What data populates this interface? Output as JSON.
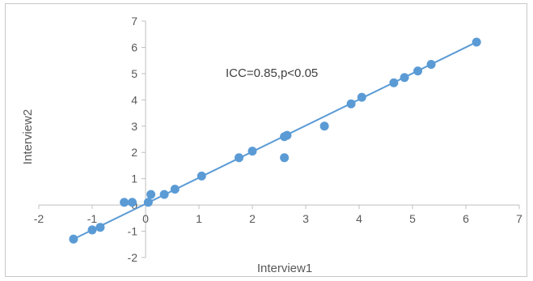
{
  "chart_data": {
    "type": "scatter",
    "xlabel": "Interview1",
    "ylabel": "Interview2",
    "annotation": "ICC=0.85,p<0.05",
    "xlim": [
      -2,
      7
    ],
    "ylim": [
      -2,
      7
    ],
    "xticks": [
      -2,
      -1,
      0,
      1,
      2,
      3,
      4,
      5,
      6,
      7
    ],
    "yticks": [
      -2,
      -1,
      0,
      1,
      2,
      3,
      4,
      5,
      6,
      7
    ],
    "grid": false,
    "color": "#5b9bd5",
    "trendline": {
      "type": "linear",
      "x": [
        -1.35,
        6.2
      ],
      "y": [
        -1.3,
        6.2
      ]
    },
    "points": [
      {
        "x": -1.35,
        "y": -1.3
      },
      {
        "x": -1.0,
        "y": -0.95
      },
      {
        "x": -0.85,
        "y": -0.85
      },
      {
        "x": -0.4,
        "y": 0.1
      },
      {
        "x": -0.25,
        "y": 0.1
      },
      {
        "x": 0.05,
        "y": 0.1
      },
      {
        "x": 0.1,
        "y": 0.4
      },
      {
        "x": 0.35,
        "y": 0.4
      },
      {
        "x": 0.55,
        "y": 0.6
      },
      {
        "x": 1.05,
        "y": 1.1
      },
      {
        "x": 1.75,
        "y": 1.8
      },
      {
        "x": 2.0,
        "y": 2.05
      },
      {
        "x": 2.6,
        "y": 2.6
      },
      {
        "x": 2.65,
        "y": 2.65
      },
      {
        "x": 2.6,
        "y": 1.8
      },
      {
        "x": 3.35,
        "y": 3.0
      },
      {
        "x": 3.85,
        "y": 3.85
      },
      {
        "x": 4.05,
        "y": 4.1
      },
      {
        "x": 4.65,
        "y": 4.65
      },
      {
        "x": 4.85,
        "y": 4.85
      },
      {
        "x": 5.1,
        "y": 5.1
      },
      {
        "x": 5.35,
        "y": 5.35
      },
      {
        "x": 6.2,
        "y": 6.2
      }
    ]
  }
}
